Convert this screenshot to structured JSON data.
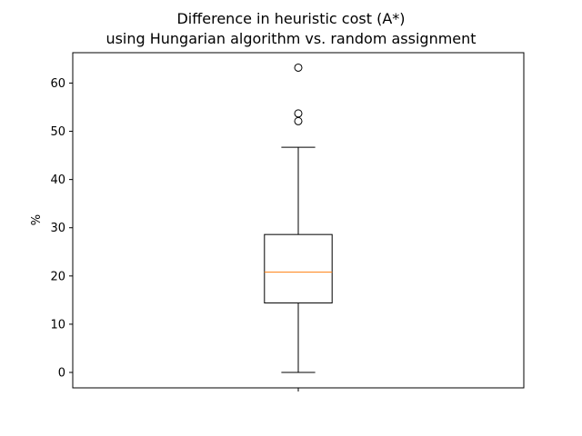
{
  "chart_data": {
    "type": "boxplot",
    "title_lines": [
      "Difference in heuristic cost (A*)",
      "using Hungarian algorithm vs. random assignment"
    ],
    "xlabel": "",
    "ylabel": "%",
    "ylim": [
      -3.2,
      66.3
    ],
    "yticks": [
      0,
      10,
      20,
      30,
      40,
      50,
      60
    ],
    "ytick_labels": [
      "0",
      "10",
      "20",
      "30",
      "40",
      "50",
      "60"
    ],
    "xtick_labels": [
      ""
    ],
    "grid": false,
    "series": [
      {
        "whisker_low": 0.0,
        "q1": 14.4,
        "median": 20.8,
        "q3": 28.6,
        "whisker_high": 46.7,
        "outliers": [
          52.1,
          53.7,
          63.2
        ]
      }
    ],
    "colors": {
      "box": "#000000",
      "median": "#ff7f0e",
      "outlier_edge": "#000000"
    }
  }
}
